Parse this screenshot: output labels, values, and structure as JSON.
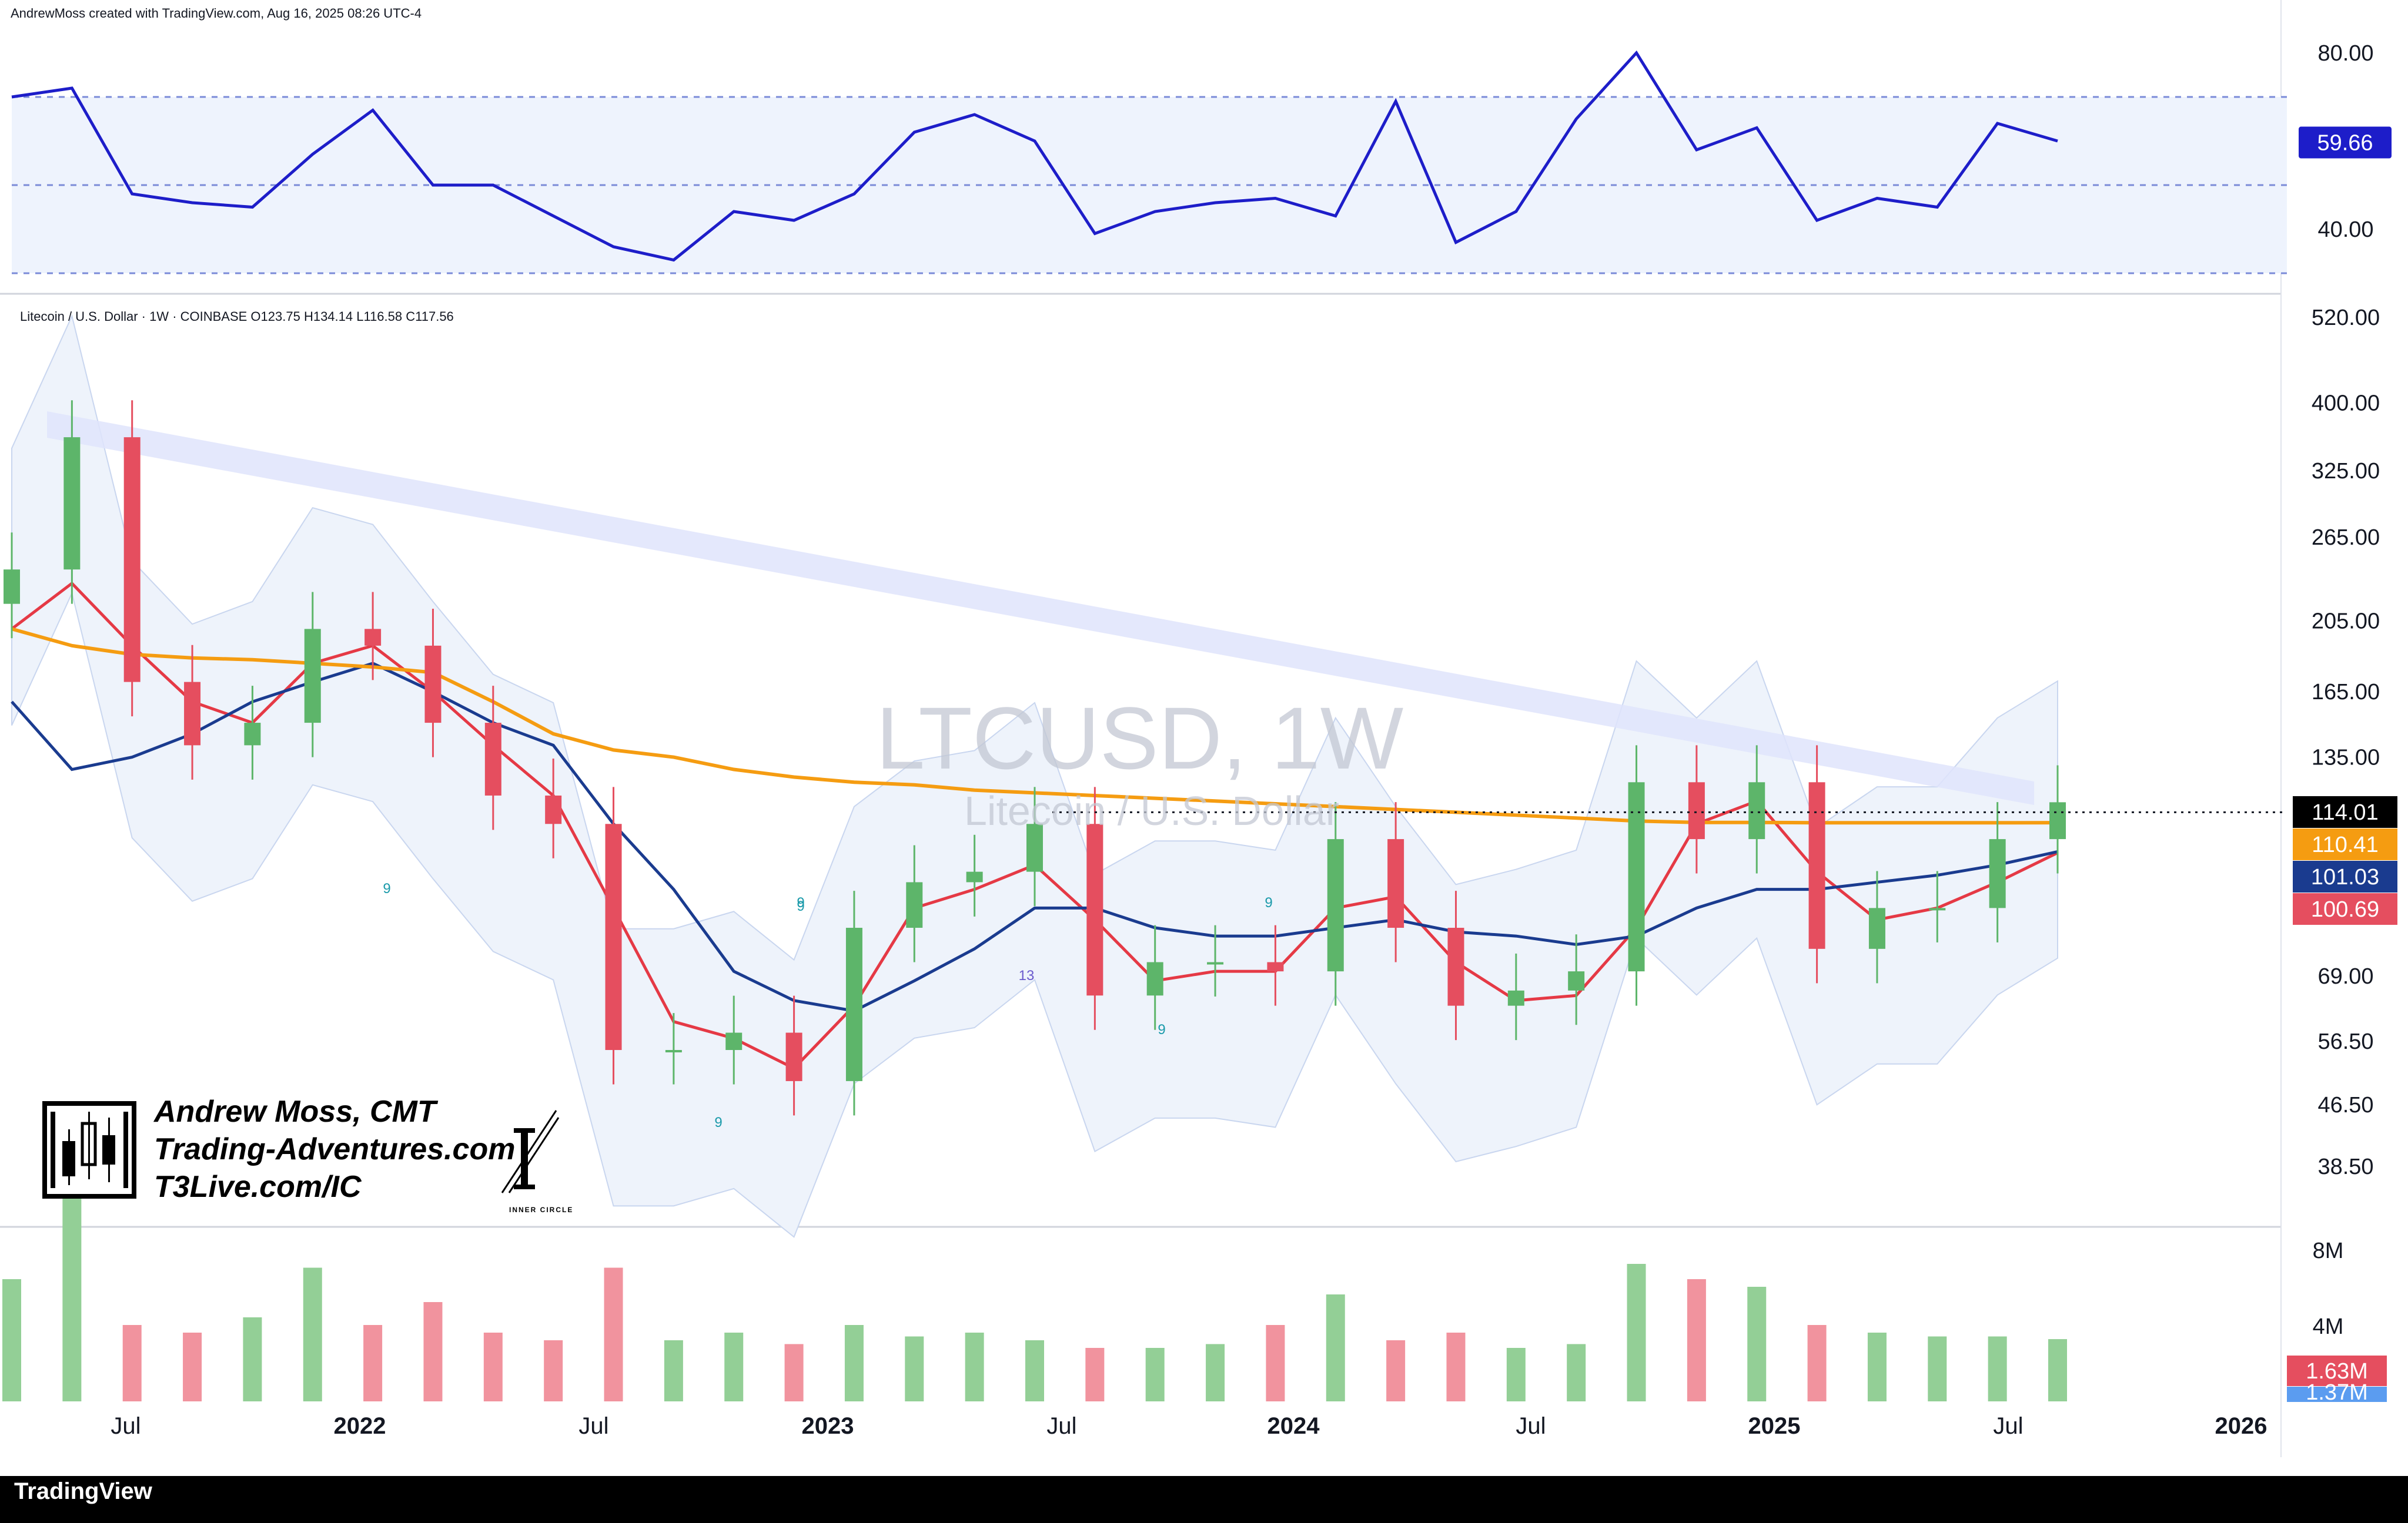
{
  "header": {
    "attribution": "AndrewMoss created with TradingView.com, Aug 16, 2025 08:26 UTC-4"
  },
  "legend": {
    "text": "Litecoin / U.S. Dollar · 1W · COINBASE  O123.75  H134.14  L116.58  C117.56"
  },
  "watermark": {
    "symbol": "LTCUSD, 1W",
    "name": "Litecoin / U.S. Dollar"
  },
  "author": {
    "line1": "Andrew Moss, CMT",
    "line2": "Trading-Adventures.com",
    "line3": "T3Live.com/IC",
    "badge": "INNER CIRCLE"
  },
  "footer": {
    "logo": "TradingView"
  },
  "colors": {
    "rsi": "#1d1dc9",
    "rsi_band": "#eef3fd",
    "ema_fast": "#e53945",
    "sma_mid": "#1a3b8f",
    "sma_long": "#f59c11",
    "bb_fill": "#eef3fb",
    "up": "#5db56a",
    "down": "#e54e5f",
    "trendline": "#dfe4fb",
    "vol_up": "#93cf96",
    "vol_down": "#f1939e"
  },
  "chart_data": [
    {
      "type": "line",
      "panel": "RSI",
      "y_ticks": [
        "80.00",
        "40.00"
      ],
      "ylim": [
        30,
        85
      ],
      "band_levels": [
        70,
        50,
        30
      ],
      "current_label": "59.66",
      "x": [
        "2021-04",
        "2021-05",
        "2021-06",
        "2021-07",
        "2021-09",
        "2021-11",
        "2021-12",
        "2022-01",
        "2022-03",
        "2022-04",
        "2022-06",
        "2022-07",
        "2022-09",
        "2022-11",
        "2023-01",
        "2023-03",
        "2023-05",
        "2023-07",
        "2023-09",
        "2023-11",
        "2024-01",
        "2024-02",
        "2024-04",
        "2024-05",
        "2024-07",
        "2024-09",
        "2024-11",
        "2024-12",
        "2025-01",
        "2025-02",
        "2025-04",
        "2025-05",
        "2025-06",
        "2025-07",
        "2025-08"
      ],
      "values": [
        70,
        72,
        48,
        46,
        45,
        57,
        67,
        50,
        50,
        43,
        36,
        33,
        44,
        42,
        48,
        62,
        66,
        60,
        39,
        44,
        46,
        47,
        43,
        69,
        37,
        44,
        65,
        80,
        58,
        63,
        42,
        47,
        45,
        64,
        60
      ]
    },
    {
      "type": "candlestick",
      "panel": "price",
      "title": "Litecoin / U.S. Dollar · 1W · COINBASE",
      "y_scale": "log",
      "y_ticks": [
        "520.00",
        "400.00",
        "325.00",
        "265.00",
        "205.00",
        "165.00",
        "135.00",
        "110.41",
        "101.03",
        "100.69",
        "69.00",
        "56.50",
        "46.50",
        "38.50"
      ],
      "ylim": [
        33,
        540
      ],
      "ohlc_last": {
        "open": 123.75,
        "high": 134.14,
        "low": 116.58,
        "close": 117.56
      },
      "x": [
        "2021-04",
        "2021-05",
        "2021-06",
        "2021-07",
        "2021-09",
        "2021-11",
        "2021-12",
        "2022-01",
        "2022-03",
        "2022-04",
        "2022-06",
        "2022-07",
        "2022-09",
        "2022-11",
        "2023-01",
        "2023-03",
        "2023-05",
        "2023-07",
        "2023-09",
        "2023-11",
        "2024-01",
        "2024-02",
        "2024-04",
        "2024-05",
        "2024-07",
        "2024-09",
        "2024-11",
        "2024-12",
        "2025-01",
        "2025-02",
        "2025-04",
        "2025-05",
        "2025-06",
        "2025-07",
        "2025-08"
      ],
      "close": [
        240,
        360,
        170,
        140,
        150,
        200,
        190,
        150,
        120,
        110,
        55,
        55,
        58,
        50,
        80,
        92,
        95,
        110,
        65,
        72,
        72,
        70,
        105,
        80,
        63,
        66,
        70,
        125,
        105,
        125,
        75,
        85,
        85,
        105,
        117.56
      ],
      "series": [
        {
          "name": "EMA 10",
          "current_label": "100.69",
          "values": [
            200,
            230,
            190,
            160,
            150,
            180,
            190,
            165,
            140,
            120,
            85,
            60,
            57,
            52,
            63,
            85,
            90,
            97,
            82,
            68,
            70,
            70,
            85,
            88,
            72,
            64,
            65,
            80,
            110,
            118,
            95,
            82,
            85,
            92,
            100.69
          ]
        },
        {
          "name": "SMA 50",
          "current_label": "101.03",
          "values": [
            160,
            130,
            135,
            145,
            160,
            170,
            180,
            165,
            150,
            140,
            110,
            90,
            70,
            64,
            62,
            68,
            75,
            85,
            85,
            80,
            78,
            78,
            80,
            82,
            79,
            78,
            76,
            78,
            85,
            90,
            90,
            92,
            94,
            97,
            101.03
          ]
        },
        {
          "name": "SMA 200",
          "current_label": "110.41",
          "values": [
            200,
            190,
            185,
            183,
            182,
            180,
            178,
            175,
            160,
            145,
            138,
            135,
            130,
            127,
            125,
            124,
            122,
            121,
            120,
            119,
            118,
            117,
            116,
            115,
            114,
            113,
            112,
            111,
            110.5,
            110.5,
            110.4,
            110.4,
            110.4,
            110.4,
            110.41
          ]
        }
      ],
      "price_line_label": "114.01"
    },
    {
      "type": "bar",
      "panel": "volume",
      "y_ticks": [
        "8M",
        "4M"
      ],
      "current_label": "1.63M",
      "secondary_label": "1.37M",
      "values_m": [
        3.2,
        7.5,
        2.0,
        1.8,
        2.2,
        3.5,
        2.0,
        2.6,
        1.8,
        1.6,
        3.5,
        1.6,
        1.8,
        1.5,
        2.0,
        1.7,
        1.8,
        1.6,
        1.4,
        1.4,
        1.5,
        2.0,
        2.8,
        1.6,
        1.8,
        1.4,
        1.5,
        3.6,
        3.2,
        3.0,
        2.0,
        1.8,
        1.7,
        1.7,
        1.63
      ]
    }
  ],
  "time_axis": [
    {
      "label": "Jul",
      "year": false
    },
    {
      "label": "2022",
      "year": true
    },
    {
      "label": "Jul",
      "year": false
    },
    {
      "label": "2023",
      "year": true
    },
    {
      "label": "Jul",
      "year": false
    },
    {
      "label": "2024",
      "year": true
    },
    {
      "label": "Jul",
      "year": false
    },
    {
      "label": "2025",
      "year": true
    },
    {
      "label": "Jul",
      "year": false
    },
    {
      "label": "2026",
      "year": true
    }
  ],
  "markers": [
    "9",
    "9",
    "9",
    "13",
    "9",
    "9",
    "9"
  ]
}
